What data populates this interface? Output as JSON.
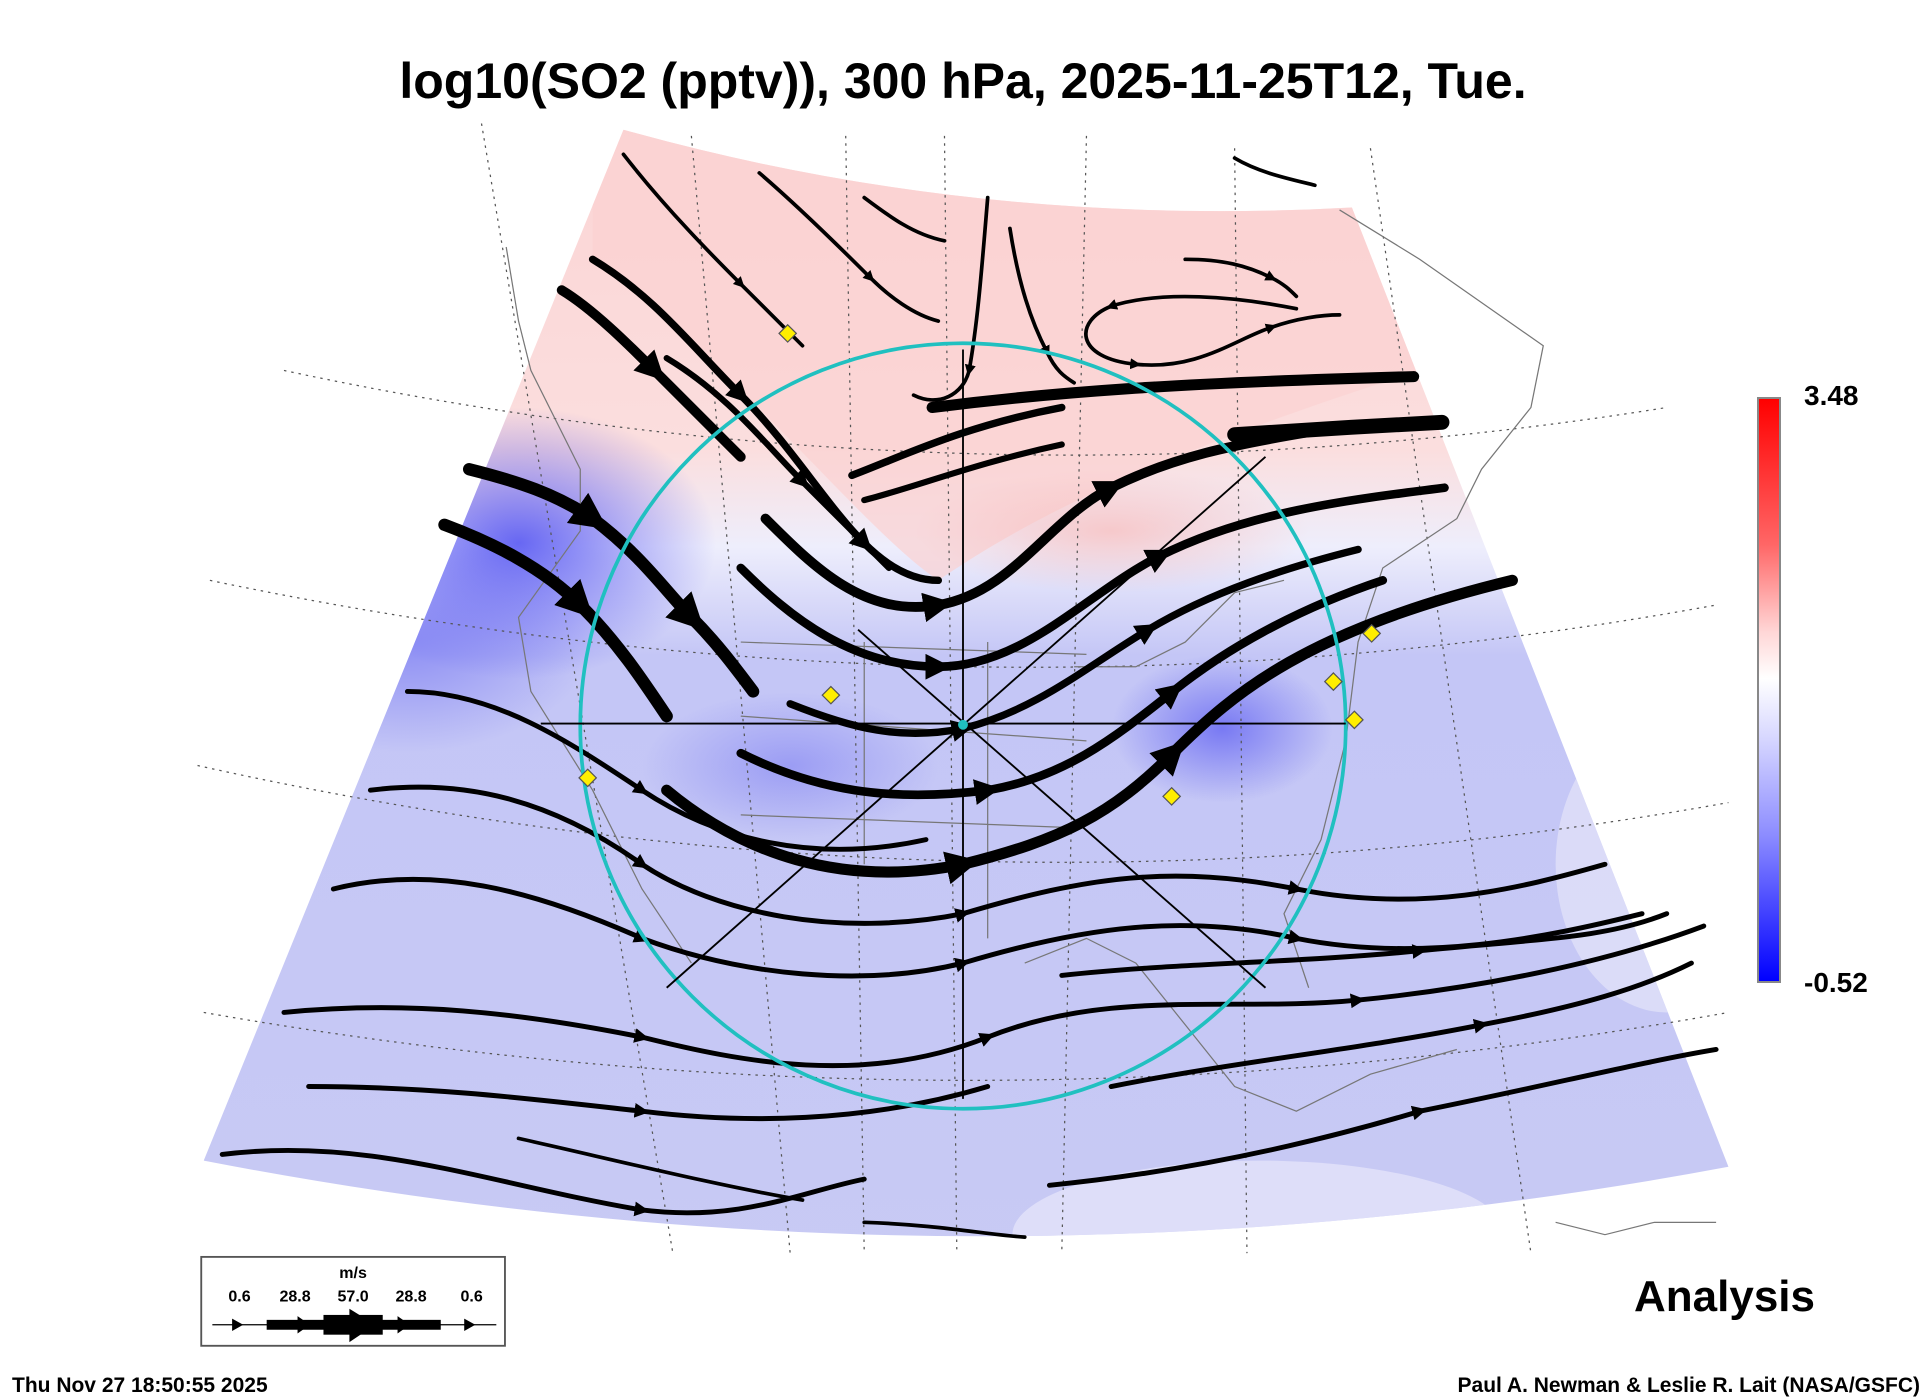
{
  "chart_data": {
    "type": "heatmap",
    "title": "log10(SO2 (pptv)), 300 hPa, 2025-11-25T12, Tue.",
    "variable": "log10(SO2 (pptv))",
    "level": "300 hPa",
    "valid_time": "2025-11-25T12",
    "colorbar": {
      "max": "3.48",
      "min": "-0.52",
      "colors": [
        "#0000ff",
        "#ffffff",
        "#ff0000"
      ]
    },
    "overlay": "wind streamlines",
    "wind_legend": {
      "unit": "m/s",
      "values": [
        "0.6",
        "28.8",
        "57.0",
        "28.8",
        "0.6"
      ]
    },
    "label": "Analysis"
  },
  "footer": {
    "timestamp": "Thu Nov 27 18:50:55 2025",
    "credit": "Paul A. Newman & Leslie R. Lait (NASA/GSFC)"
  }
}
